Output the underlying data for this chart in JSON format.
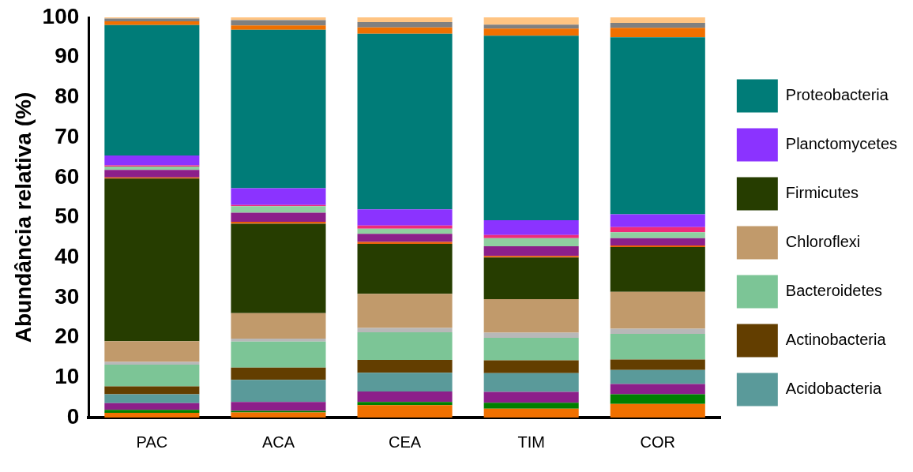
{
  "chart_data": {
    "type": "bar",
    "stacked": true,
    "ylabel": "Abundância relativa (%)",
    "categories": [
      "PAC",
      "ACA",
      "CEA",
      "TIM",
      "COR"
    ],
    "ylim": [
      0,
      100
    ],
    "yticks": [
      0,
      10,
      20,
      30,
      40,
      50,
      60,
      70,
      80,
      90,
      100
    ],
    "grid": false,
    "legend": "right",
    "series": [
      {
        "color": "#f07000",
        "values": [
          1.2,
          1.3,
          3.1,
          2.2,
          3.4
        ]
      },
      {
        "color": "#007f00",
        "values": [
          0.7,
          0.4,
          0.8,
          1.5,
          2.4
        ]
      },
      {
        "color": "#8c1f8a",
        "values": [
          1.7,
          2.2,
          2.6,
          2.7,
          2.6
        ]
      },
      {
        "name": "Acidobacteria",
        "color": "#5a9a9a",
        "values": [
          2.2,
          5.5,
          4.7,
          4.7,
          3.5
        ]
      },
      {
        "name": "Actinobacteria",
        "color": "#633e00",
        "values": [
          2.0,
          3.1,
          3.2,
          3.2,
          2.6
        ]
      },
      {
        "name": "Bacteroidetes",
        "color": "#7cc596",
        "values": [
          5.4,
          6.5,
          6.9,
          5.6,
          6.4
        ]
      },
      {
        "color": "#b8b8b8",
        "values": [
          0.7,
          0.7,
          1.1,
          1.3,
          1.3
        ]
      },
      {
        "name": "Chloroflexi",
        "color": "#c19a6b",
        "values": [
          5.2,
          6.4,
          8.5,
          8.4,
          9.2
        ]
      },
      {
        "name": "Firmicutes",
        "color": "#263d00",
        "values": [
          40.6,
          22.3,
          12.5,
          10.4,
          11.2
        ]
      },
      {
        "color": "#e8600a",
        "values": [
          0.3,
          0.5,
          0.5,
          0.4,
          0.4
        ]
      },
      {
        "color": "#8c1f8a",
        "values": [
          1.9,
          2.3,
          2.0,
          2.4,
          1.8
        ]
      },
      {
        "color": "#8fcfa0",
        "values": [
          0.8,
          1.6,
          1.3,
          2.0,
          1.5
        ]
      },
      {
        "color": "#ee2a7b",
        "values": [
          0.3,
          0.3,
          0.8,
          0.8,
          1.3
        ]
      },
      {
        "name": "Planctomycetes",
        "color": "#8b33ff",
        "values": [
          2.5,
          4.2,
          4.0,
          3.7,
          3.2
        ]
      },
      {
        "name": "Proteobacteria",
        "color": "#007c78",
        "values": [
          32.6,
          39.6,
          43.9,
          46.1,
          44.2
        ]
      },
      {
        "color": "#f07000",
        "values": [
          0.9,
          1.1,
          1.6,
          1.8,
          2.4
        ]
      },
      {
        "color": "#808080",
        "values": [
          0.7,
          1.3,
          1.3,
          1.0,
          1.2
        ]
      },
      {
        "color": "#ffc482",
        "values": [
          0.3,
          0.7,
          1.2,
          1.8,
          1.4
        ]
      }
    ]
  }
}
